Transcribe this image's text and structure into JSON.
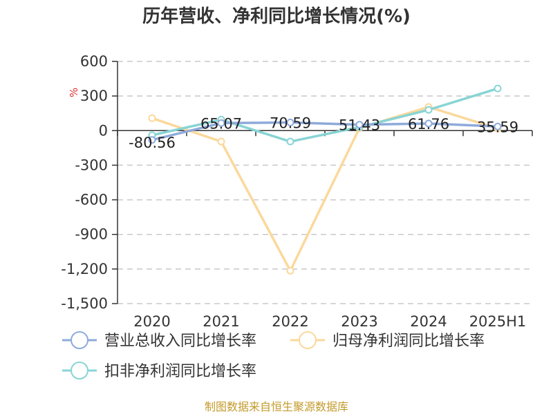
{
  "title": "历年营收、净利同比增长情况(%)",
  "unit": "%",
  "source": "制图数据来自恒生聚源数据库",
  "chart_data": {
    "type": "line",
    "title": "历年营收、净利同比增长情况(%)",
    "categories": [
      "2020",
      "2021",
      "2022",
      "2023",
      "2024",
      "2025H1"
    ],
    "ylim": [
      -1500,
      600
    ],
    "yticks": [
      600,
      300,
      0,
      -300,
      -600,
      -900,
      -1200,
      -1500
    ],
    "ytick_labels": [
      "600",
      "300",
      "0",
      "-300",
      "-600",
      "-900",
      "-1,200",
      "-1,500"
    ],
    "ylabel": "%",
    "grid": true,
    "legend_position": "bottom-left",
    "series": [
      {
        "name": "营业总收入同比增长率",
        "color": "#8eaadb",
        "values": [
          -80.56,
          65.07,
          70.59,
          51.43,
          61.76,
          35.59
        ],
        "labels": [
          "-80.56",
          "65.07",
          "70.59",
          "51.43",
          "61.76",
          "35.59"
        ]
      },
      {
        "name": "归母净利润同比增长率",
        "color": "#fbd89b",
        "values": [
          108,
          -95,
          -1215,
          22,
          205,
          18
        ]
      },
      {
        "name": "扣非净利润同比增长率",
        "color": "#88d4d4",
        "values": [
          -40,
          95,
          -95,
          30,
          180,
          365
        ]
      }
    ]
  }
}
